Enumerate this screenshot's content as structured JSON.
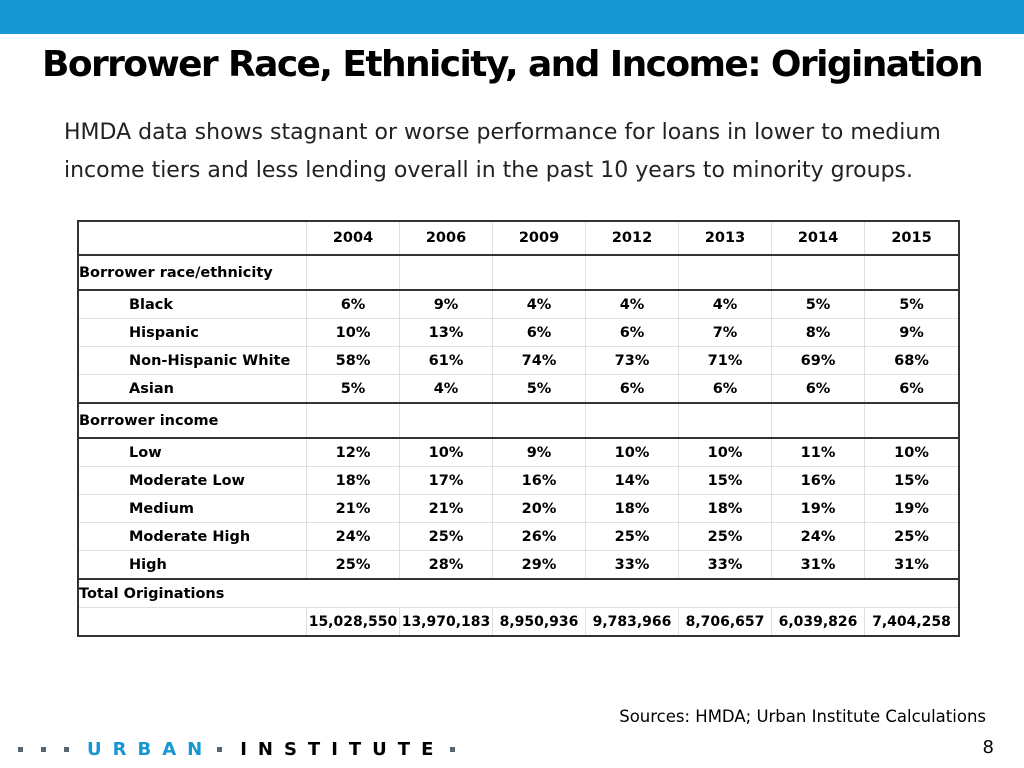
{
  "title": "Borrower Race, Ethnicity, and Income: Origination",
  "subtitle": "HMDA data shows stagnant or worse performance for loans in lower to medium income tiers and less lending overall in the past 10 years to minority groups.",
  "table": {
    "years": [
      "2004",
      "2006",
      "2009",
      "2012",
      "2013",
      "2014",
      "2015"
    ],
    "race_section": "Borrower race/ethnicity",
    "race_rows": [
      {
        "label": "Black",
        "values": [
          "6%",
          "9%",
          "4%",
          "4%",
          "4%",
          "5%",
          "5%"
        ]
      },
      {
        "label": "Hispanic",
        "values": [
          "10%",
          "13%",
          "6%",
          "6%",
          "7%",
          "8%",
          "9%"
        ]
      },
      {
        "label": "Non-Hispanic White",
        "values": [
          "58%",
          "61%",
          "74%",
          "73%",
          "71%",
          "69%",
          "68%"
        ]
      },
      {
        "label": "Asian",
        "values": [
          "5%",
          "4%",
          "5%",
          "6%",
          "6%",
          "6%",
          "6%"
        ]
      }
    ],
    "income_section": "Borrower income",
    "income_rows": [
      {
        "label": "Low",
        "values": [
          "12%",
          "10%",
          "9%",
          "10%",
          "10%",
          "11%",
          "10%"
        ]
      },
      {
        "label": "Moderate Low",
        "values": [
          "18%",
          "17%",
          "16%",
          "14%",
          "15%",
          "16%",
          "15%"
        ]
      },
      {
        "label": "Medium",
        "values": [
          "21%",
          "21%",
          "20%",
          "18%",
          "18%",
          "19%",
          "19%"
        ]
      },
      {
        "label": "Moderate High",
        "values": [
          "24%",
          "25%",
          "26%",
          "25%",
          "25%",
          "24%",
          "25%"
        ]
      },
      {
        "label": "High",
        "values": [
          "25%",
          "28%",
          "29%",
          "33%",
          "33%",
          "31%",
          "31%"
        ]
      }
    ],
    "total_label": "Total Originations",
    "total_values": [
      "15,028,550",
      "13,970,183",
      "8,950,936",
      "9,783,966",
      "8,706,657",
      "6,039,826",
      "7,404,258"
    ]
  },
  "source": "Sources: HMDA; Urban Institute Calculations",
  "footer": {
    "logo_word_1": "URBAN",
    "logo_word_2": "INSTITUTE",
    "page_number": "8"
  },
  "colors": {
    "accent": "#1696d2",
    "gray": "#5b6770"
  }
}
